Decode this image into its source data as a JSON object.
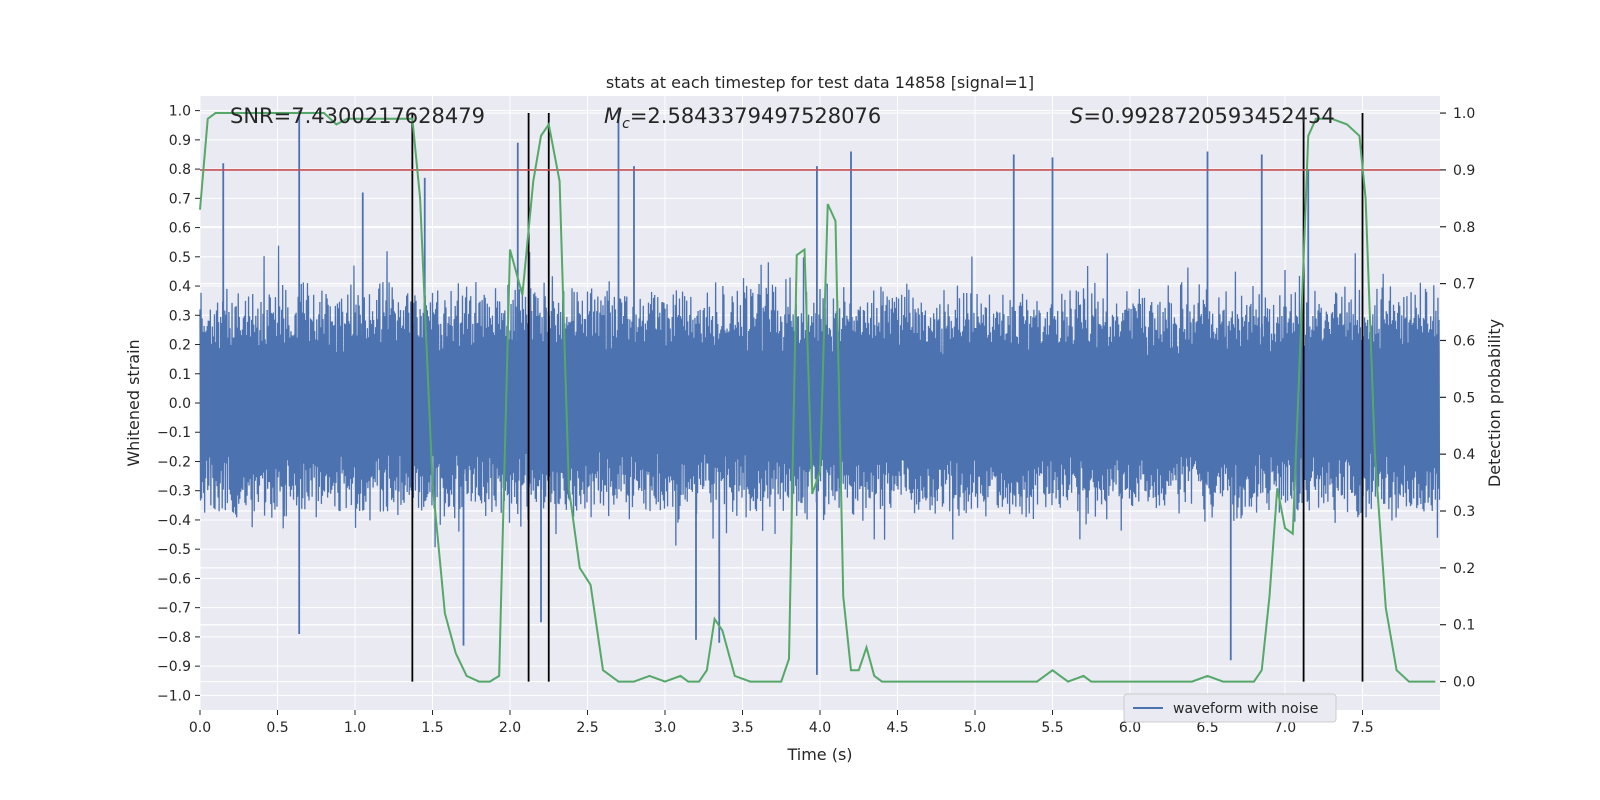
{
  "chart_data": {
    "type": "line",
    "title": "stats at each timestep for test data 14858 [signal=1]",
    "xlabel": "Time (s)",
    "ylabel": "Whitened strain",
    "y2label": "Detection probability",
    "xlim": [
      0,
      8
    ],
    "ylim": [
      -1.05,
      1.05
    ],
    "y2lim": [
      -0.05,
      1.03
    ],
    "xticks": [
      0.0,
      0.5,
      1.0,
      1.5,
      2.0,
      2.5,
      3.0,
      3.5,
      4.0,
      4.5,
      5.0,
      5.5,
      6.0,
      6.5,
      7.0,
      7.5
    ],
    "xtick_labels": [
      "0.0",
      "0.5",
      "1.0",
      "1.5",
      "2.0",
      "2.5",
      "3.0",
      "3.5",
      "4.0",
      "4.5",
      "5.0",
      "5.5",
      "6.0",
      "6.5",
      "7.0",
      "7.5"
    ],
    "yticks": [
      -1.0,
      -0.9,
      -0.8,
      -0.7,
      -0.6,
      -0.5,
      -0.4,
      -0.3,
      -0.2,
      -0.1,
      0.0,
      0.1,
      0.2,
      0.3,
      0.4,
      0.5,
      0.6,
      0.7,
      0.8,
      0.9,
      1.0
    ],
    "ytick_labels": [
      "−1.0",
      "−0.9",
      "−0.8",
      "−0.7",
      "−0.6",
      "−0.5",
      "−0.4",
      "−0.3",
      "−0.2",
      "−0.1",
      "0.0",
      "0.1",
      "0.2",
      "0.3",
      "0.4",
      "0.5",
      "0.6",
      "0.7",
      "0.8",
      "0.9",
      "1.0"
    ],
    "y2ticks": [
      0.0,
      0.1,
      0.2,
      0.3,
      0.4,
      0.5,
      0.6,
      0.7,
      0.8,
      0.9,
      1.0
    ],
    "y2tick_labels": [
      "0.0",
      "0.1",
      "0.2",
      "0.3",
      "0.4",
      "0.5",
      "0.6",
      "0.7",
      "0.8",
      "0.9",
      "1.0"
    ],
    "annotations": {
      "snr": "SNR=7.4300217628479",
      "mc_symbol": "M",
      "mc_sub": "c",
      "mc_value": "=2.5843379497528076",
      "s_symbol": "S",
      "s_value": "=0.9928720593452454"
    },
    "legend": {
      "label": "waveform with noise",
      "location": "lower-right"
    },
    "threshold": {
      "axis": "y2",
      "value": 0.9
    },
    "event_markers_x": [
      1.37,
      2.12,
      2.25,
      7.12,
      7.5
    ],
    "event_marker_y2_range": [
      0.0,
      1.0
    ],
    "waveform": {
      "name": "waveform with noise",
      "samples": 2400,
      "envelope_abs": 0.42,
      "spikes": [
        {
          "x": 0.15,
          "value": 0.82
        },
        {
          "x": 0.64,
          "value": 1.0
        },
        {
          "x": 0.64,
          "value": -0.79
        },
        {
          "x": 1.05,
          "value": 0.72
        },
        {
          "x": 1.45,
          "value": 0.77
        },
        {
          "x": 1.7,
          "value": -0.83
        },
        {
          "x": 2.05,
          "value": 0.89
        },
        {
          "x": 2.2,
          "value": -0.75
        },
        {
          "x": 2.7,
          "value": 1.0
        },
        {
          "x": 2.8,
          "value": 0.81
        },
        {
          "x": 3.2,
          "value": -0.81
        },
        {
          "x": 3.35,
          "value": -0.82
        },
        {
          "x": 3.98,
          "value": 0.81
        },
        {
          "x": 3.98,
          "value": -0.93
        },
        {
          "x": 4.2,
          "value": 0.86
        },
        {
          "x": 5.25,
          "value": 0.85
        },
        {
          "x": 5.5,
          "value": 0.84
        },
        {
          "x": 6.5,
          "value": 0.86
        },
        {
          "x": 6.65,
          "value": -0.88
        },
        {
          "x": 6.85,
          "value": 0.85
        },
        {
          "x": 7.15,
          "value": 0.8
        }
      ]
    },
    "detection_probability": {
      "name": "detection probability",
      "x": [
        0.0,
        0.05,
        0.1,
        0.2,
        0.3,
        0.4,
        0.5,
        0.6,
        0.7,
        0.8,
        0.88,
        0.95,
        1.0,
        1.1,
        1.2,
        1.3,
        1.37,
        1.42,
        1.5,
        1.58,
        1.65,
        1.72,
        1.8,
        1.87,
        1.93,
        2.0,
        2.08,
        2.15,
        2.2,
        2.25,
        2.32,
        2.38,
        2.45,
        2.52,
        2.6,
        2.7,
        2.8,
        2.9,
        3.0,
        3.1,
        3.15,
        3.22,
        3.27,
        3.32,
        3.37,
        3.45,
        3.55,
        3.65,
        3.75,
        3.8,
        3.85,
        3.9,
        3.95,
        4.0,
        4.05,
        4.1,
        4.15,
        4.2,
        4.25,
        4.3,
        4.35,
        4.4,
        4.5,
        4.6,
        4.7,
        4.8,
        4.9,
        5.0,
        5.1,
        5.2,
        5.3,
        5.4,
        5.5,
        5.55,
        5.6,
        5.7,
        5.75,
        5.8,
        5.9,
        6.0,
        6.1,
        6.2,
        6.3,
        6.4,
        6.5,
        6.6,
        6.7,
        6.8,
        6.85,
        6.9,
        6.95,
        7.0,
        7.05,
        7.1,
        7.15,
        7.2,
        7.25,
        7.3,
        7.4,
        7.48,
        7.52,
        7.58,
        7.65,
        7.72,
        7.8,
        7.9,
        7.97
      ],
      "y": [
        0.83,
        0.99,
        1.0,
        1.0,
        1.0,
        1.0,
        1.0,
        1.0,
        1.0,
        1.0,
        0.98,
        0.99,
        0.99,
        0.99,
        0.99,
        0.99,
        0.99,
        0.85,
        0.35,
        0.12,
        0.05,
        0.01,
        0.0,
        0.0,
        0.01,
        0.76,
        0.68,
        0.88,
        0.96,
        0.98,
        0.88,
        0.34,
        0.2,
        0.17,
        0.02,
        0.0,
        0.0,
        0.01,
        0.0,
        0.01,
        0.0,
        0.0,
        0.02,
        0.11,
        0.09,
        0.01,
        0.0,
        0.0,
        0.0,
        0.04,
        0.75,
        0.76,
        0.33,
        0.37,
        0.84,
        0.81,
        0.15,
        0.02,
        0.02,
        0.06,
        0.01,
        0.0,
        0.0,
        0.0,
        0.0,
        0.0,
        0.0,
        0.0,
        0.0,
        0.0,
        0.0,
        0.0,
        0.02,
        0.01,
        0.0,
        0.01,
        0.0,
        0.0,
        0.0,
        0.0,
        0.0,
        0.0,
        0.0,
        0.0,
        0.01,
        0.0,
        0.0,
        0.0,
        0.02,
        0.15,
        0.34,
        0.27,
        0.26,
        0.6,
        0.96,
        0.99,
        0.99,
        0.99,
        0.98,
        0.96,
        0.85,
        0.4,
        0.13,
        0.02,
        0.0,
        0.0,
        0.0
      ]
    },
    "colors": {
      "waveform": "#4c72b0",
      "probability": "#55a868",
      "threshold": "#c44e52",
      "markers": "#000000",
      "panel": "#eaeaf2",
      "grid": "#ffffff",
      "text": "#262626"
    }
  }
}
